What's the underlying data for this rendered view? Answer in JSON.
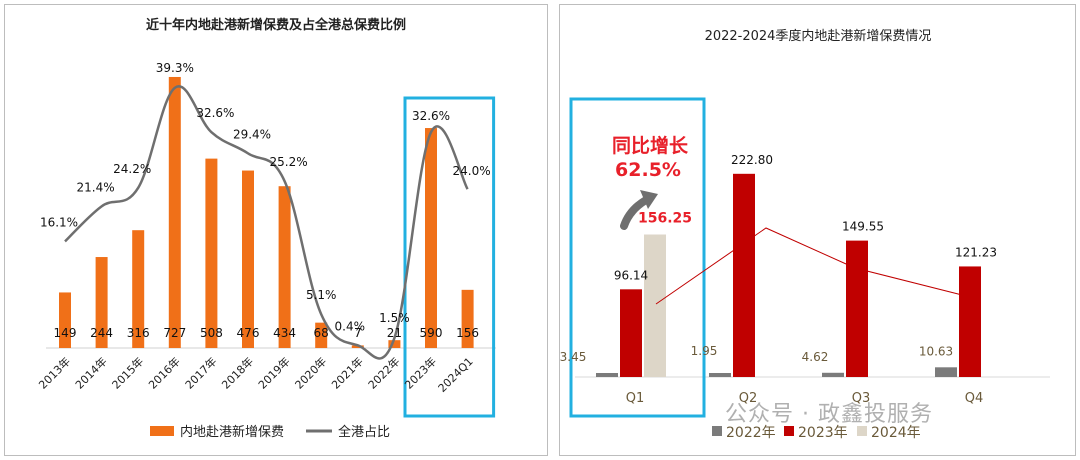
{
  "colors": {
    "orange": "#f07018",
    "gray_line": "#6f6f6f",
    "highlight": "#22b0e0",
    "c2022": "#7b7b7b",
    "c2023": "#c00000",
    "c2024": "#ddd6c8",
    "accent_red": "#e8202a",
    "trend": "#c00000"
  },
  "watermark": "公众号 · 政鑫投服务",
  "chart_data": [
    {
      "type": "bar",
      "title": "近十年内地赴港新增保费及占全港总保费比例",
      "categories": [
        "2013年",
        "2014年",
        "2015年",
        "2016年",
        "2017年",
        "2018年",
        "2019年",
        "2020年",
        "2021年",
        "2022年",
        "2023年",
        "2024Q1"
      ],
      "series": [
        {
          "name": "内地赴港新增保费",
          "type": "bar",
          "values": [
            149,
            244,
            316,
            727,
            508,
            476,
            434,
            68,
            7,
            21,
            590,
            156
          ],
          "labels": [
            "149",
            "244",
            "316",
            "727",
            "508",
            "476",
            "434",
            "68",
            "7",
            "21",
            "590",
            "156"
          ]
        },
        {
          "name": "全港占比",
          "type": "line",
          "values": [
            16.1,
            21.4,
            24.2,
            39.3,
            32.6,
            29.4,
            25.2,
            5.1,
            0.4,
            1.5,
            32.6,
            24.0
          ],
          "labels": [
            "16.1%",
            "21.4%",
            "24.2%",
            "39.3%",
            "32.6%",
            "29.4%",
            "25.2%",
            "5.1%",
            "0.4%",
            "1.5%",
            "32.6%",
            "24.0%"
          ]
        }
      ],
      "legend": [
        "内地赴港新增保费",
        "全港占比"
      ],
      "legend_position": "bottom",
      "highlight_categories": [
        "2023年",
        "2024Q1"
      ]
    },
    {
      "type": "bar",
      "title": "2022-2024季度内地赴港新增保费情况",
      "categories": [
        "Q1",
        "Q2",
        "Q3",
        "Q4"
      ],
      "series": [
        {
          "name": "2022年",
          "values": [
            3.45,
            1.95,
            4.62,
            10.63
          ],
          "labels": [
            "3.45",
            "1.95",
            "4.62",
            "10.63"
          ]
        },
        {
          "name": "2023年",
          "values": [
            96.14,
            222.8,
            149.55,
            121.23
          ],
          "labels": [
            "96.14",
            "222.80",
            "149.55",
            "121.23"
          ]
        },
        {
          "name": "2024年",
          "values": [
            156.25,
            null,
            null,
            null
          ],
          "labels": [
            "156.25",
            "",
            "",
            ""
          ]
        }
      ],
      "legend": [
        "2022年",
        "2023年",
        "2024年"
      ],
      "legend_position": "bottom",
      "annotation": {
        "line1": "同比增长",
        "line2": "62.5%"
      },
      "highlight_categories": [
        "Q1"
      ]
    }
  ]
}
